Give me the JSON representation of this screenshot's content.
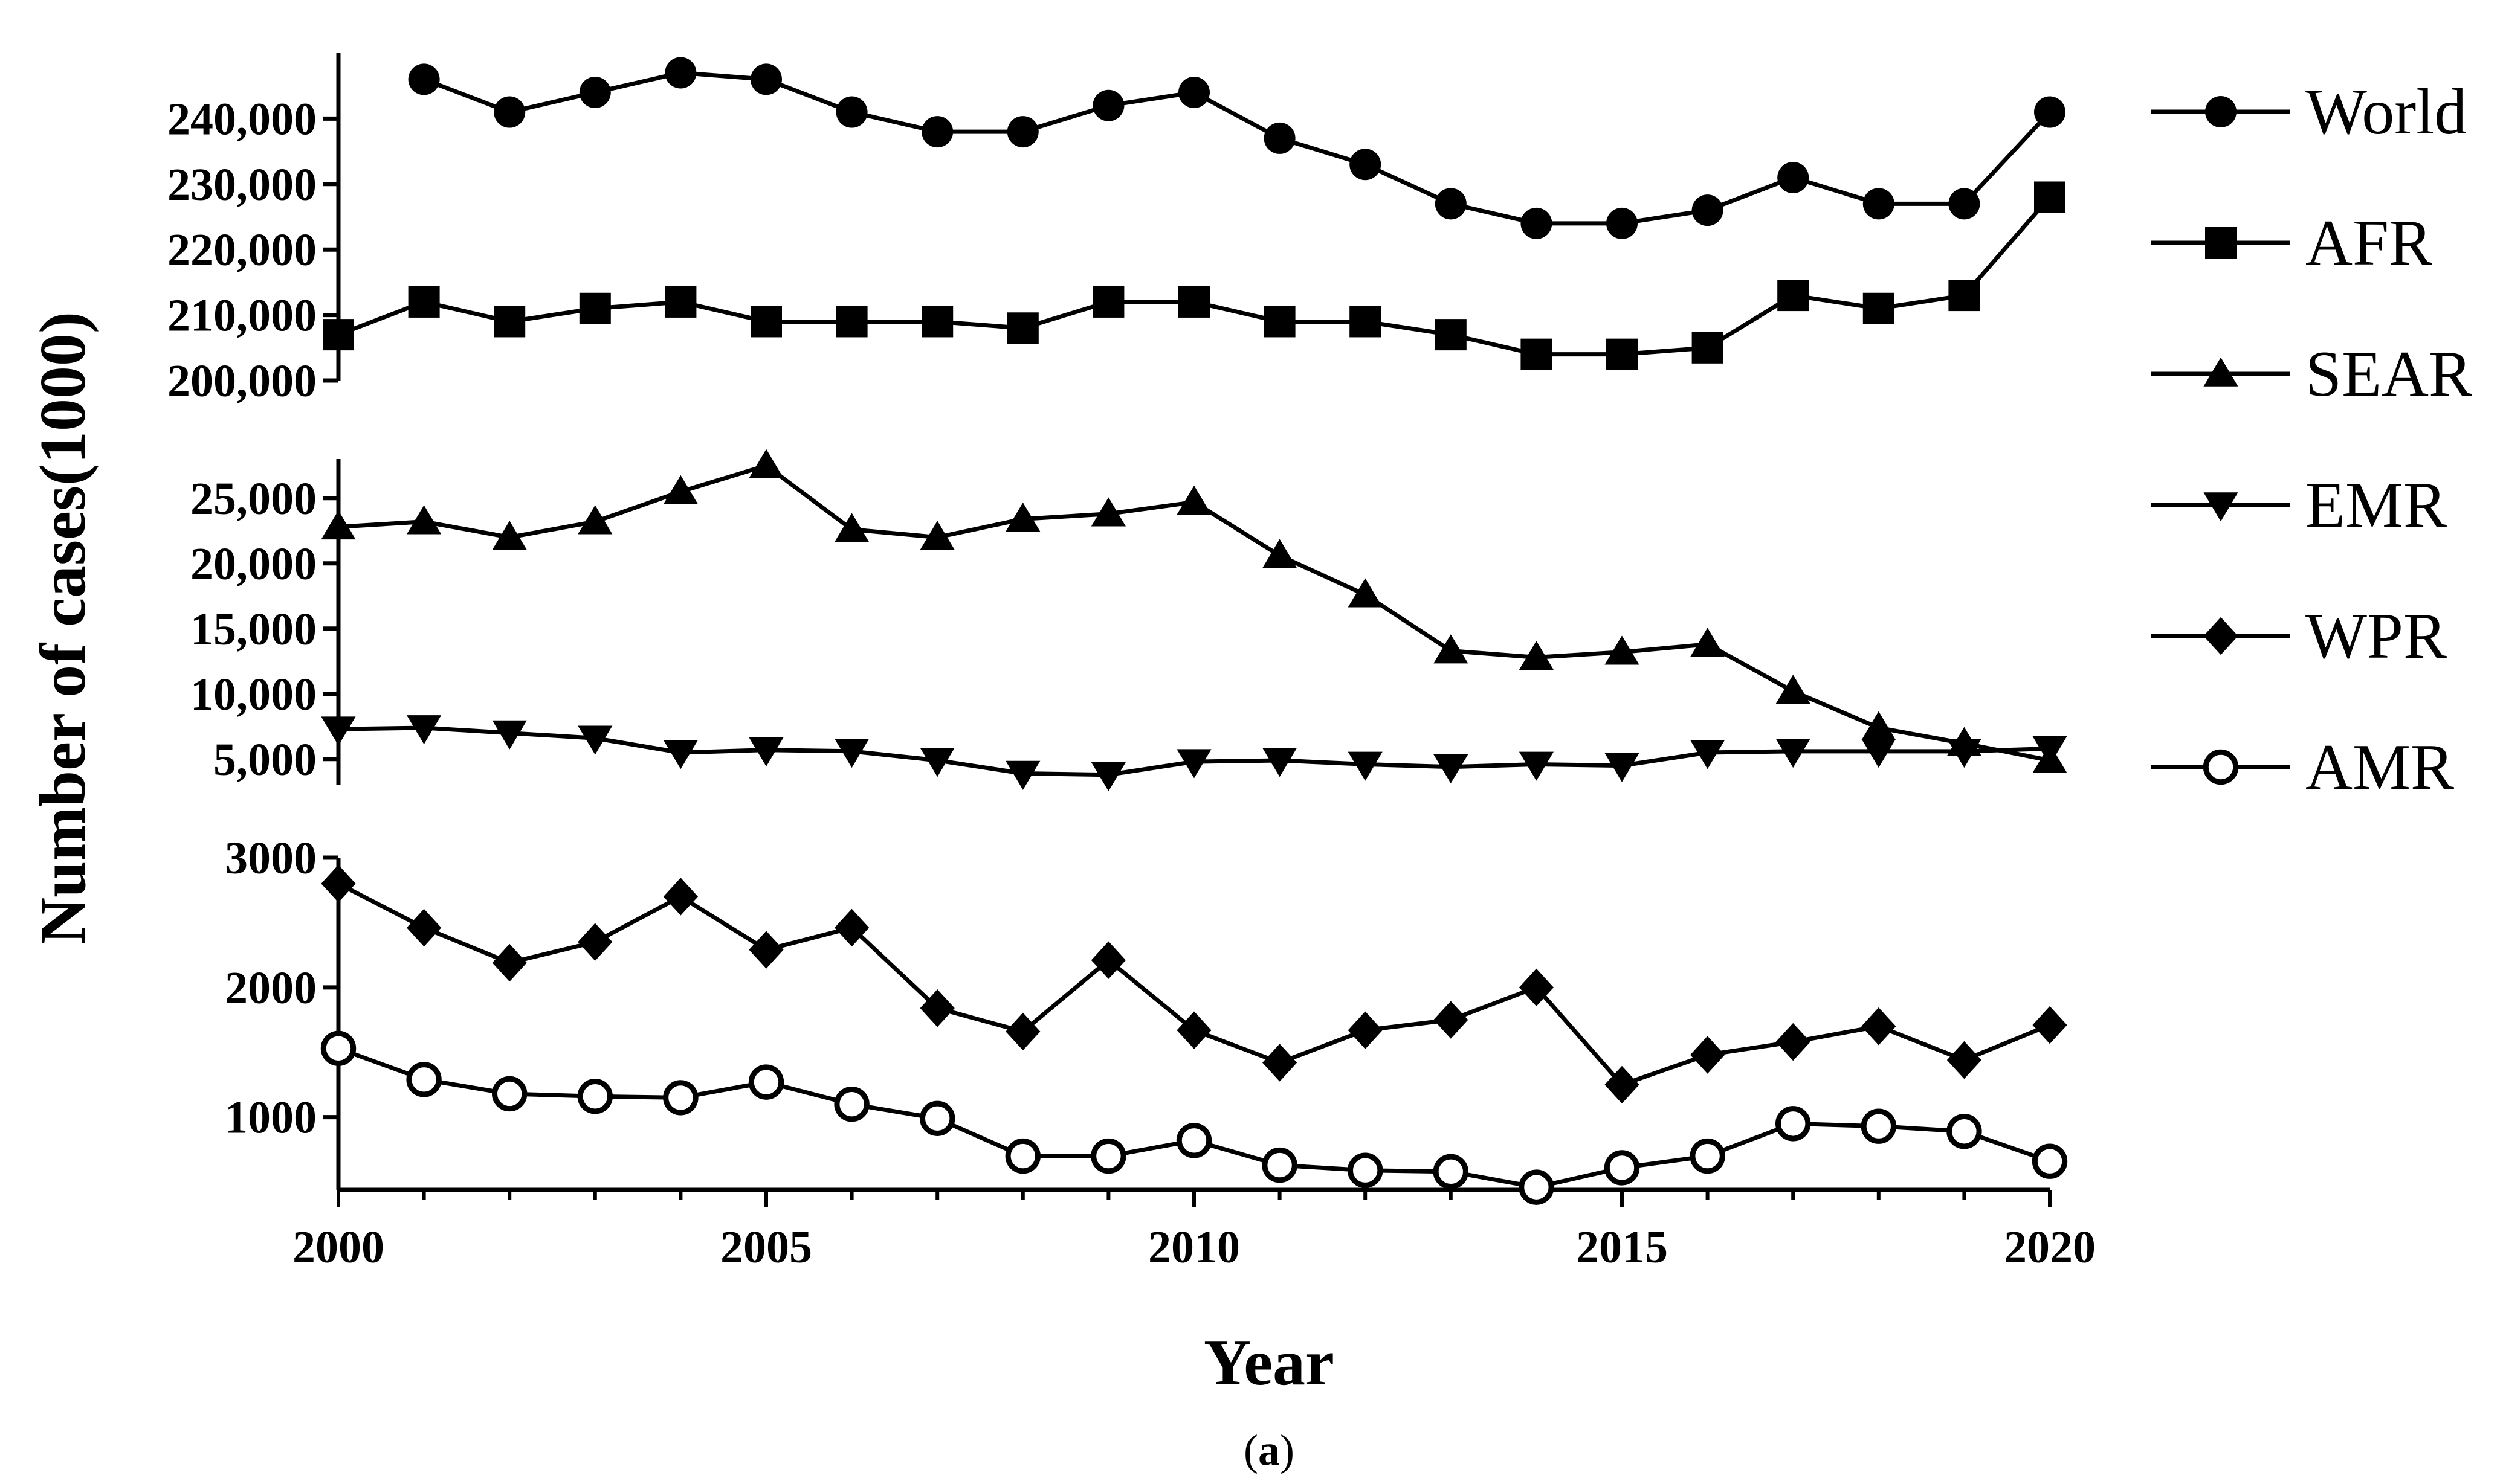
{
  "chart_data": {
    "type": "line",
    "title": "",
    "xlabel": "Year",
    "ylabel": "Number of cases(1000)",
    "caption_prefix": "(",
    "caption_letter": "a",
    "caption_suffix": ")",
    "xlim": [
      2000,
      2020
    ],
    "x_ticks": [
      2000,
      2005,
      2010,
      2015,
      2020
    ],
    "x": [
      2000,
      2001,
      2002,
      2003,
      2004,
      2005,
      2006,
      2007,
      2008,
      2009,
      2010,
      2011,
      2012,
      2013,
      2014,
      2015,
      2016,
      2017,
      2018,
      2019,
      2020
    ],
    "legend_position": "right",
    "grid": false,
    "panels": [
      {
        "name": "top",
        "ylim": [
          200000,
          250000
        ],
        "y_ticks": [
          200000,
          210000,
          220000,
          230000,
          240000
        ],
        "y_tick_labels": [
          "200,000",
          "210,000",
          "220,000",
          "230,000",
          "240,000"
        ]
      },
      {
        "name": "middle",
        "ylim": [
          3000,
          28000
        ],
        "y_ticks": [
          5000,
          10000,
          15000,
          20000,
          25000
        ],
        "y_tick_labels": [
          "5,000",
          "10,000",
          "15,000",
          "20,000",
          "25,000"
        ]
      },
      {
        "name": "bottom",
        "ylim": [
          300,
          3000
        ],
        "y_ticks": [
          1000,
          2000,
          3000
        ],
        "y_tick_labels": [
          "1000",
          "2000",
          "3000"
        ]
      }
    ],
    "series": [
      {
        "name": "World",
        "marker": "circle",
        "panel": 0,
        "values": [
          null,
          246000,
          241000,
          244000,
          247000,
          246000,
          241000,
          238000,
          238000,
          242000,
          244000,
          237000,
          233000,
          227000,
          224000,
          224000,
          226000,
          231000,
          227000,
          227000,
          241000
        ]
      },
      {
        "name": "AFR",
        "marker": "square",
        "panel": 0,
        "values": [
          207000,
          212000,
          209000,
          211000,
          212000,
          209000,
          209000,
          209000,
          208000,
          212000,
          212000,
          209000,
          209000,
          207000,
          204000,
          204000,
          205000,
          213000,
          211000,
          213000,
          228000
        ]
      },
      {
        "name": "SEAR",
        "marker": "triangle-up",
        "panel": 1,
        "values": [
          22800,
          23200,
          22000,
          23200,
          25500,
          27500,
          22600,
          22000,
          23400,
          23800,
          24700,
          20600,
          17600,
          13300,
          12800,
          13200,
          13800,
          10200,
          7400,
          6200,
          4900
        ]
      },
      {
        "name": "EMR",
        "marker": "triangle-down",
        "panel": 1,
        "values": [
          7300,
          7400,
          7000,
          6600,
          5500,
          5700,
          5600,
          4900,
          3900,
          3800,
          4800,
          4900,
          4600,
          4400,
          4600,
          4500,
          5500,
          5600,
          5600,
          5600,
          5800
        ]
      },
      {
        "name": "WPR",
        "marker": "diamond",
        "panel": 2,
        "values": [
          2800,
          2460,
          2190,
          2350,
          2700,
          2290,
          2460,
          1840,
          1660,
          2210,
          1670,
          1420,
          1670,
          1750,
          2000,
          1250,
          1480,
          1580,
          1700,
          1440,
          1710
        ]
      },
      {
        "name": "AMR",
        "marker": "open-circle",
        "panel": 2,
        "values": [
          1530,
          1290,
          1180,
          1160,
          1150,
          1270,
          1100,
          990,
          700,
          700,
          820,
          630,
          590,
          580,
          460,
          610,
          700,
          950,
          930,
          890,
          660
        ]
      }
    ]
  }
}
